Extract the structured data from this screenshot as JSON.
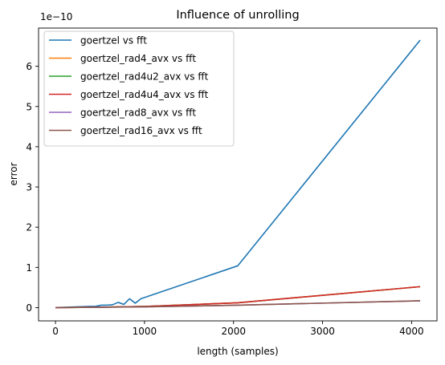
{
  "chart_data": {
    "type": "line",
    "title": "Influence of unrolling",
    "xlabel": "length (samples)",
    "ylabel": "error",
    "offset_text": "1e−10",
    "xlim": [
      -190,
      4285
    ],
    "ylim": [
      -0.33,
      6.95
    ],
    "y_scale_note": "values in units of 1e-10",
    "xticks": [
      0,
      1000,
      2000,
      3000,
      4000
    ],
    "yticks": [
      0,
      1,
      2,
      3,
      4,
      5,
      6
    ],
    "xtick_labels": [
      "0",
      "1000",
      "2000",
      "3000",
      "4000"
    ],
    "ytick_labels": [
      "0",
      "1",
      "2",
      "3",
      "4",
      "5",
      "6"
    ],
    "grid": false,
    "legend_position": "top-left",
    "series": [
      {
        "name": "goertzel vs fft",
        "color": "#1f77b4",
        "x": [
          0,
          128,
          256,
          384,
          448,
          512,
          576,
          640,
          704,
          768,
          832,
          896,
          960,
          2048,
          4096
        ],
        "y": [
          0,
          0.01,
          0.02,
          0.03,
          0.03,
          0.06,
          0.06,
          0.07,
          0.13,
          0.08,
          0.22,
          0.11,
          0.22,
          1.04,
          6.65
        ]
      },
      {
        "name": "goertzel_rad4_avx vs fft",
        "color": "#ff7f0e",
        "x": [
          0,
          512,
          1024,
          2048,
          4096
        ],
        "y": [
          0,
          0.01,
          0.03,
          0.12,
          0.52
        ]
      },
      {
        "name": "goertzel_rad4u2_avx vs fft",
        "color": "#2ca02c",
        "x": [
          0,
          512,
          1024,
          2048,
          4096
        ],
        "y": [
          0,
          0.01,
          0.03,
          0.12,
          0.52
        ]
      },
      {
        "name": "goertzel_rad4u4_avx vs fft",
        "color": "#d62728",
        "x": [
          0,
          512,
          1024,
          2048,
          4096
        ],
        "y": [
          0,
          0.01,
          0.03,
          0.12,
          0.52
        ]
      },
      {
        "name": "goertzel_rad8_avx vs fft",
        "color": "#9467bd",
        "x": [
          0,
          512,
          1024,
          2048,
          4096
        ],
        "y": [
          0,
          0.01,
          0.02,
          0.06,
          0.17
        ]
      },
      {
        "name": "goertzel_rad16_avx vs fft",
        "color": "#8c564b",
        "x": [
          0,
          512,
          1024,
          2048,
          4096
        ],
        "y": [
          0,
          0.01,
          0.02,
          0.06,
          0.17
        ]
      }
    ]
  }
}
